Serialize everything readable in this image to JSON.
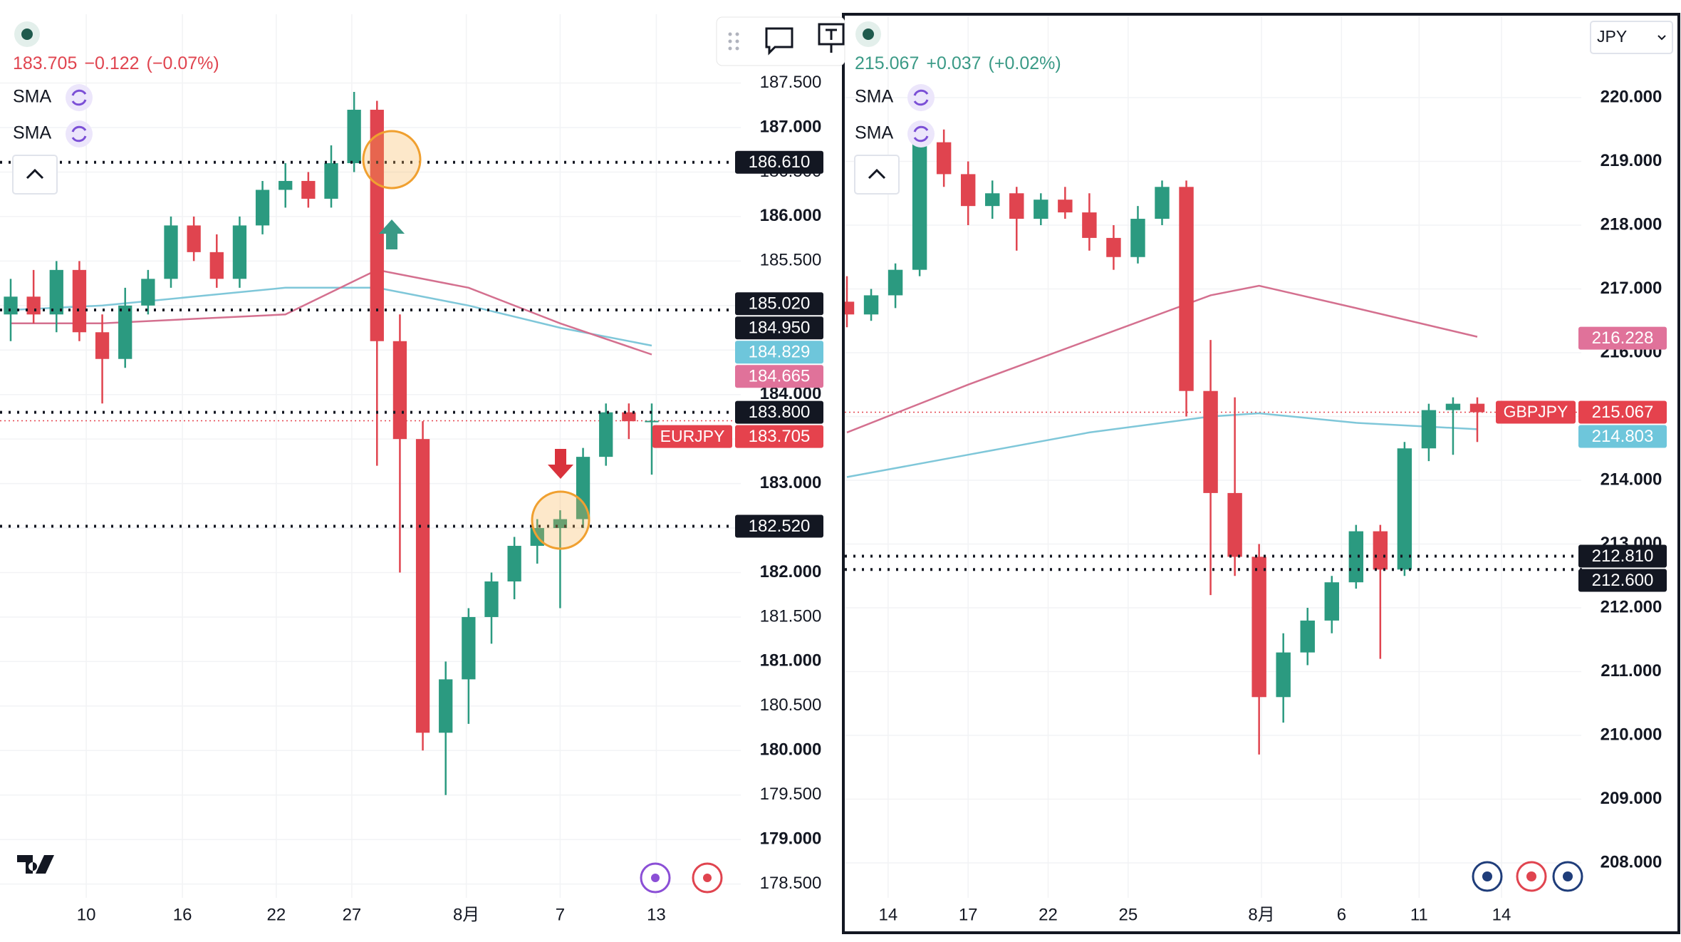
{
  "chart_data": [
    {
      "type": "candlestick",
      "symbol": "EURJPY",
      "quote": "183.705",
      "change": "−0.122",
      "change_pct": "(−0.07%)",
      "quote_color": "#e0444f",
      "indicators": [
        "SMA",
        "SMA"
      ],
      "candles": [
        [
          184.9,
          185.3,
          184.6,
          185.1
        ],
        [
          185.1,
          185.4,
          184.8,
          184.9
        ],
        [
          184.9,
          185.5,
          184.7,
          185.4
        ],
        [
          185.4,
          185.5,
          184.6,
          184.7
        ],
        [
          184.7,
          184.9,
          183.9,
          184.4
        ],
        [
          184.4,
          185.2,
          184.3,
          185.0
        ],
        [
          185.0,
          185.4,
          184.9,
          185.3
        ],
        [
          185.3,
          186.0,
          185.2,
          185.9
        ],
        [
          185.9,
          186.0,
          185.5,
          185.6
        ],
        [
          185.6,
          185.8,
          185.2,
          185.3
        ],
        [
          185.3,
          186.0,
          185.2,
          185.9
        ],
        [
          185.9,
          186.4,
          185.8,
          186.3
        ],
        [
          186.3,
          186.6,
          186.1,
          186.4
        ],
        [
          186.4,
          186.5,
          186.1,
          186.2
        ],
        [
          186.2,
          186.8,
          186.1,
          186.6
        ],
        [
          186.6,
          187.4,
          186.5,
          187.2
        ],
        [
          187.2,
          187.3,
          183.2,
          184.6
        ],
        [
          184.6,
          184.9,
          182.0,
          183.5
        ],
        [
          183.5,
          183.7,
          180.0,
          180.2
        ],
        [
          180.2,
          181.0,
          179.5,
          180.8
        ],
        [
          180.8,
          181.6,
          180.3,
          181.5
        ],
        [
          181.5,
          182.0,
          181.2,
          181.9
        ],
        [
          181.9,
          182.4,
          181.7,
          182.3
        ],
        [
          182.3,
          182.6,
          182.1,
          182.5
        ],
        [
          182.5,
          182.7,
          181.6,
          182.6
        ],
        [
          182.6,
          183.4,
          182.5,
          183.3
        ],
        [
          183.3,
          183.9,
          183.2,
          183.8
        ],
        [
          183.8,
          183.9,
          183.5,
          183.7
        ],
        [
          183.7,
          183.9,
          183.1,
          183.705
        ]
      ],
      "series": [
        {
          "color": "#7fc7d9",
          "x": [
            0,
            4,
            8,
            12,
            16,
            20,
            24,
            28
          ],
          "values": [
            184.95,
            185.0,
            185.1,
            185.2,
            185.2,
            185.0,
            184.75,
            184.55
          ]
        },
        {
          "color": "#d4708f",
          "x": [
            0,
            4,
            8,
            12,
            16,
            20,
            24,
            28
          ],
          "values": [
            184.8,
            184.8,
            184.85,
            184.9,
            185.4,
            185.2,
            184.8,
            184.45
          ]
        }
      ],
      "ylim": [
        178.25,
        187.75
      ],
      "yticks": [
        {
          "value": 187.5,
          "label": "187.500"
        },
        {
          "value": 187,
          "label": "187.000"
        },
        {
          "value": 186.5,
          "label": "186.500"
        },
        {
          "value": 186,
          "label": "186.000"
        },
        {
          "value": 185.5,
          "label": "185.500"
        },
        {
          "value": 185,
          "label": "185.000"
        },
        {
          "value": 184.5,
          "label": "184.500"
        },
        {
          "value": 184,
          "label": "184.000"
        },
        {
          "value": 183.5,
          "label": "183.500"
        },
        {
          "value": 183,
          "label": "183.000"
        },
        {
          "value": 182.5,
          "label": "182.500"
        },
        {
          "value": 182,
          "label": "182.000"
        },
        {
          "value": 181.5,
          "label": "181.500"
        },
        {
          "value": 181,
          "label": "181.000"
        },
        {
          "value": 180.5,
          "label": "180.500"
        },
        {
          "value": 180,
          "label": "180.000"
        },
        {
          "value": 179.5,
          "label": "179.500"
        },
        {
          "value": 179,
          "label": "179.000"
        },
        {
          "value": 178.5,
          "label": "178.500"
        }
      ],
      "xticks": [
        {
          "value": 3.3,
          "label": "10"
        },
        {
          "value": 7.5,
          "label": "16"
        },
        {
          "value": 11.6,
          "label": "22"
        },
        {
          "value": 14.9,
          "label": "27"
        },
        {
          "value": 19.9,
          "label": "8月"
        },
        {
          "value": 24,
          "label": "7"
        },
        {
          "value": 28.2,
          "label": "13"
        }
      ],
      "tags": [
        {
          "value": 186.61,
          "label": "186.610",
          "style": "level",
          "color": "#131722"
        },
        {
          "value": 185.02,
          "label": "185.020",
          "style": "plain",
          "color": "#131722"
        },
        {
          "value": 184.95,
          "label": "184.950",
          "style": "level",
          "color": "#131722"
        },
        {
          "value": 184.829,
          "label": "184.829",
          "style": "plain",
          "color": "#6ec6db"
        },
        {
          "value": 184.665,
          "label": "184.665",
          "style": "plain",
          "color": "#e0729a"
        },
        {
          "value": 183.8,
          "label": "183.800",
          "style": "level",
          "color": "#131722"
        },
        {
          "value": 183.705,
          "label": "183.705",
          "style": "price",
          "color": "#e5424d"
        },
        {
          "value": 182.52,
          "label": "182.520",
          "style": "level",
          "color": "#131722"
        }
      ]
    },
    {
      "type": "candlestick",
      "symbol": "GBPJPY",
      "quote": "215.067",
      "change": "+0.037",
      "change_pct": "(+0.02%)",
      "quote_color": "#3a9a86",
      "currency": "JPY",
      "indicators": [
        "SMA",
        "SMA"
      ],
      "candles": [
        [
          216.8,
          217.2,
          216.4,
          216.6
        ],
        [
          216.6,
          217.0,
          216.5,
          216.9
        ],
        [
          216.9,
          217.4,
          216.7,
          217.3
        ],
        [
          217.3,
          219.6,
          217.2,
          219.3
        ],
        [
          219.3,
          219.5,
          218.6,
          218.8
        ],
        [
          218.8,
          219.0,
          218.0,
          218.3
        ],
        [
          218.3,
          218.7,
          218.1,
          218.5
        ],
        [
          218.5,
          218.6,
          217.6,
          218.1
        ],
        [
          218.1,
          218.5,
          218.0,
          218.4
        ],
        [
          218.4,
          218.6,
          218.1,
          218.2
        ],
        [
          218.2,
          218.5,
          217.6,
          217.8
        ],
        [
          217.8,
          218.0,
          217.3,
          217.5
        ],
        [
          217.5,
          218.3,
          217.4,
          218.1
        ],
        [
          218.1,
          218.7,
          218.0,
          218.6
        ],
        [
          218.6,
          218.7,
          215.0,
          215.4
        ],
        [
          215.4,
          216.2,
          212.2,
          213.8
        ],
        [
          213.8,
          215.3,
          212.5,
          212.8
        ],
        [
          212.8,
          213.0,
          209.7,
          210.6
        ],
        [
          210.6,
          211.6,
          210.2,
          211.3
        ],
        [
          211.3,
          212.0,
          211.1,
          211.8
        ],
        [
          211.8,
          212.5,
          211.6,
          212.4
        ],
        [
          212.4,
          213.3,
          212.3,
          213.2
        ],
        [
          213.2,
          213.3,
          211.2,
          212.6
        ],
        [
          212.6,
          214.6,
          212.5,
          214.5
        ],
        [
          214.5,
          215.2,
          214.3,
          215.1
        ],
        [
          215.1,
          215.3,
          214.4,
          215.2
        ],
        [
          215.2,
          215.3,
          214.6,
          215.067
        ]
      ],
      "series": [
        {
          "color": "#d4708f",
          "x": [
            0,
            5,
            10,
            15,
            17,
            21,
            26
          ],
          "values": [
            214.75,
            215.5,
            216.2,
            216.9,
            217.05,
            216.7,
            216.25
          ]
        },
        {
          "color": "#7fc7d9",
          "x": [
            0,
            5,
            10,
            15,
            17,
            21,
            26
          ],
          "values": [
            214.05,
            214.4,
            214.75,
            215.0,
            215.05,
            214.9,
            214.8
          ]
        }
      ],
      "ylim": [
        207.6,
        220.9
      ],
      "yticks": [
        {
          "value": 220,
          "label": "220.000"
        },
        {
          "value": 219,
          "label": "219.000"
        },
        {
          "value": 218,
          "label": "218.000"
        },
        {
          "value": 217,
          "label": "217.000"
        },
        {
          "value": 216,
          "label": "216.000"
        },
        {
          "value": 215,
          "label": "215.000"
        },
        {
          "value": 214,
          "label": "214.000"
        },
        {
          "value": 213,
          "label": "213.000"
        },
        {
          "value": 212,
          "label": "212.000"
        },
        {
          "value": 211,
          "label": "211.000"
        },
        {
          "value": 210,
          "label": "210.000"
        },
        {
          "value": 209,
          "label": "209.000"
        },
        {
          "value": 208,
          "label": "208.000"
        }
      ],
      "xticks": [
        {
          "value": 1.7,
          "label": "14"
        },
        {
          "value": 5,
          "label": "17"
        },
        {
          "value": 8.3,
          "label": "22"
        },
        {
          "value": 11.6,
          "label": "25"
        },
        {
          "value": 17.1,
          "label": "8月"
        },
        {
          "value": 20.4,
          "label": "6"
        },
        {
          "value": 23.6,
          "label": "11"
        },
        {
          "value": 27,
          "label": "14"
        }
      ],
      "tags": [
        {
          "value": 216.228,
          "label": "216.228",
          "style": "plain",
          "color": "#e0729a"
        },
        {
          "value": 215.067,
          "label": "215.067",
          "style": "price",
          "color": "#e5424d"
        },
        {
          "value": 214.803,
          "label": "214.803",
          "style": "plain",
          "color": "#6ec6db"
        },
        {
          "value": 212.81,
          "label": "212.810",
          "style": "level",
          "color": "#131722"
        },
        {
          "value": 212.6,
          "label": "212.600",
          "style": "level",
          "color": "#131722"
        }
      ]
    }
  ]
}
